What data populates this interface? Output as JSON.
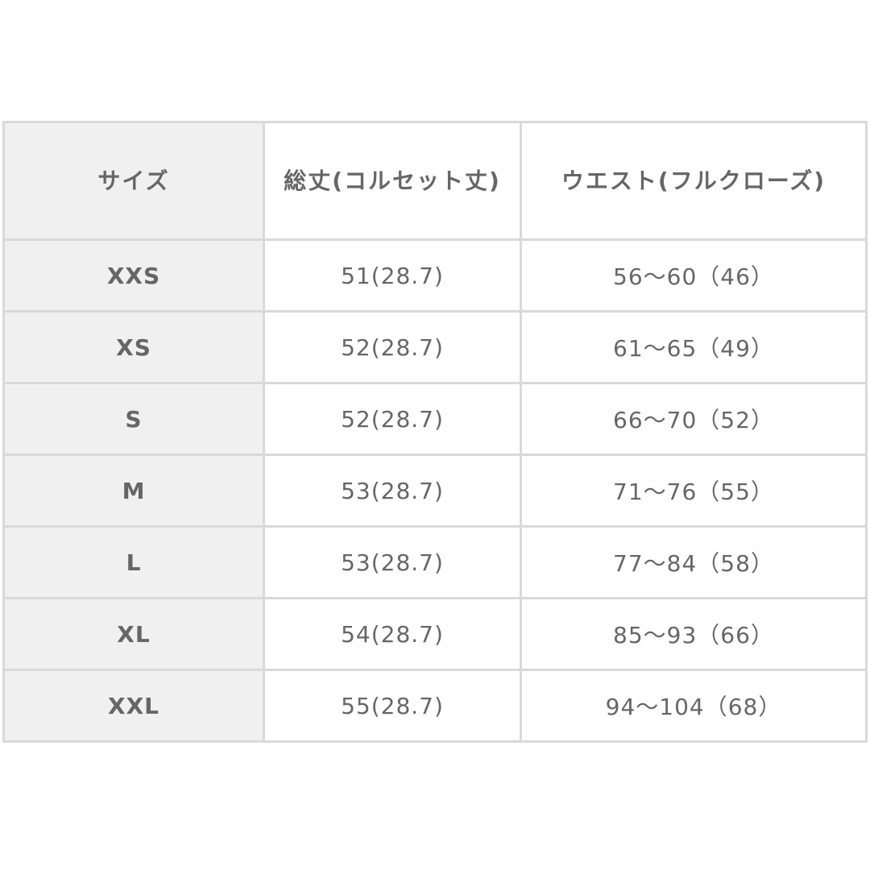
{
  "table": {
    "headers": [
      "サイズ",
      "総丈(コルセット丈)",
      "ウエスト(フルクローズ)"
    ],
    "rows": [
      {
        "size": "XXS",
        "length": "51(28.7)",
        "waist": "56〜60（46）"
      },
      {
        "size": "XS",
        "length": "52(28.7)",
        "waist": "61〜65（49）"
      },
      {
        "size": "S",
        "length": "52(28.7)",
        "waist": "66〜70（52）"
      },
      {
        "size": "M",
        "length": "53(28.7)",
        "waist": "71〜76（55）"
      },
      {
        "size": "L",
        "length": "53(28.7)",
        "waist": "77〜84（58）"
      },
      {
        "size": "XL",
        "length": "54(28.7)",
        "waist": "85〜93（66）"
      },
      {
        "size": "XXL",
        "length": "55(28.7)",
        "waist": "94〜104（68）"
      }
    ]
  }
}
